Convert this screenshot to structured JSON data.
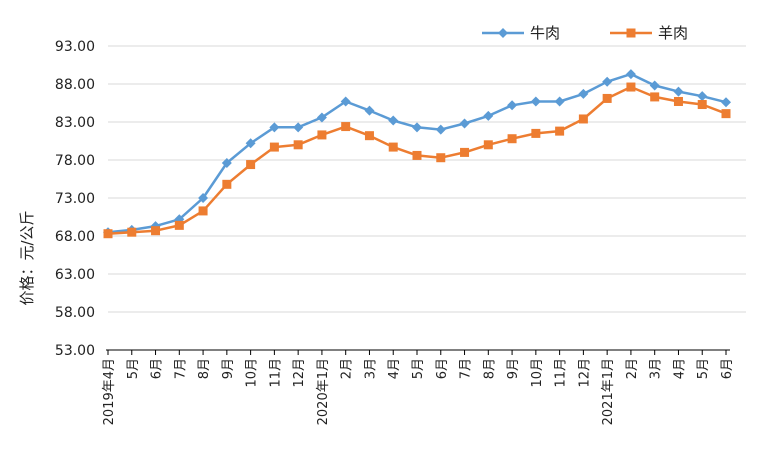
{
  "chart_data": {
    "type": "line",
    "title": "",
    "xlabel": "",
    "ylabel": "价格：元/公斤",
    "ylim": [
      53,
      93
    ],
    "yticks": [
      "53.00",
      "58.00",
      "63.00",
      "68.00",
      "73.00",
      "78.00",
      "83.00",
      "88.00",
      "93.00"
    ],
    "categories": [
      "2019年4月",
      "5月",
      "6月",
      "7月",
      "8月",
      "9月",
      "10月",
      "11月",
      "12月",
      "2020年1月",
      "2月",
      "3月",
      "4月",
      "5月",
      "6月",
      "7月",
      "8月",
      "9月",
      "10月",
      "11月",
      "12月",
      "2021年1月",
      "2月",
      "3月",
      "4月",
      "5月",
      "6月"
    ],
    "grid": true,
    "legend_position": "top-right",
    "series": [
      {
        "name": "牛肉",
        "color": "#5B9BD5",
        "marker": "diamond",
        "values": [
          68.5,
          68.8,
          69.3,
          70.2,
          73.0,
          77.6,
          80.2,
          82.3,
          82.3,
          83.6,
          85.7,
          84.5,
          83.2,
          82.3,
          82.0,
          82.8,
          83.8,
          85.2,
          85.7,
          85.7,
          86.7,
          88.3,
          89.3,
          87.8,
          87.0,
          86.4,
          85.6
        ]
      },
      {
        "name": "羊肉",
        "color": "#ED7D31",
        "marker": "square",
        "values": [
          68.3,
          68.5,
          68.7,
          69.4,
          71.3,
          74.8,
          77.4,
          79.7,
          80.0,
          81.3,
          82.4,
          81.2,
          79.7,
          78.6,
          78.3,
          79.0,
          80.0,
          80.8,
          81.5,
          81.8,
          83.4,
          86.1,
          87.6,
          86.3,
          85.7,
          85.3,
          84.1
        ]
      }
    ]
  }
}
